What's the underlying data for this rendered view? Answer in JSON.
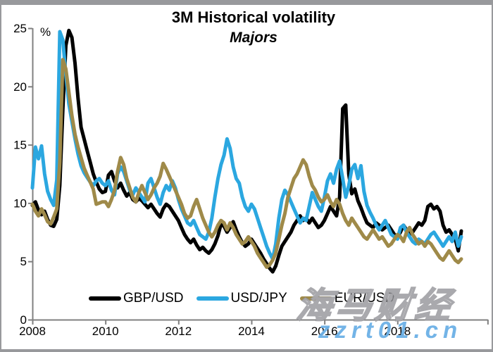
{
  "watermark": {
    "brand_text": "海马财经",
    "site_text": "zzrt01.cn"
  },
  "chart_data": {
    "type": "line",
    "title": "3M Historical volatility",
    "subtitle": "Majors",
    "xlabel": "",
    "ylabel": "%",
    "ylim": [
      0,
      25
    ],
    "yticks": [
      0,
      5,
      10,
      15,
      20,
      25
    ],
    "xticks": [
      2008,
      2010,
      2012,
      2014,
      2016,
      2018
    ],
    "x_start": 2008.0,
    "x_end": 2019.75,
    "x_axis_end": 2020.48,
    "frequency": "monthly",
    "grid": false,
    "legend_position": "bottom",
    "axis_color": "#808080",
    "series": [
      {
        "name": "GBP/USD",
        "color": "#000000",
        "values": [
          9.8,
          10.1,
          9.4,
          9.0,
          9.3,
          8.6,
          8.1,
          8.0,
          8.6,
          11.5,
          18.0,
          23.5,
          24.8,
          24.2,
          22.0,
          19.0,
          16.5,
          15.5,
          14.5,
          13.5,
          12.5,
          11.8,
          11.2,
          10.9,
          11.0,
          12.4,
          12.7,
          11.9,
          11.3,
          11.7,
          11.1,
          10.6,
          10.9,
          10.3,
          10.1,
          10.4,
          10.2,
          9.9,
          9.6,
          9.9,
          9.5,
          9.1,
          8.8,
          9.5,
          9.9,
          9.7,
          9.3,
          8.9,
          8.5,
          7.9,
          7.3,
          6.9,
          6.6,
          6.9,
          6.4,
          6.0,
          6.2,
          5.9,
          5.7,
          6.0,
          6.5,
          7.2,
          8.2,
          8.0,
          7.5,
          7.9,
          8.4,
          7.7,
          7.1,
          6.6,
          6.3,
          6.5,
          6.9,
          6.5,
          6.1,
          5.7,
          5.2,
          4.8,
          4.4,
          4.1,
          4.6,
          5.5,
          6.3,
          6.7,
          7.1,
          7.5,
          8.1,
          8.5,
          8.9,
          8.5,
          8.7,
          8.3,
          8.7,
          8.3,
          7.9,
          8.1,
          8.5,
          9.1,
          9.7,
          9.3,
          8.9,
          10.5,
          18.1,
          18.4,
          12.5,
          10.8,
          11.2,
          10.2,
          9.6,
          8.9,
          8.3,
          8.1,
          7.9,
          8.3,
          8.1,
          7.7,
          7.9,
          8.1,
          7.7,
          7.3,
          7.1,
          7.5,
          8.1,
          7.7,
          7.3,
          7.5,
          7.9,
          8.3,
          8.1,
          8.5,
          9.7,
          9.9,
          9.5,
          9.7,
          9.3,
          8.1,
          7.5,
          7.7,
          7.3,
          6.9,
          5.9,
          7.6
        ]
      },
      {
        "name": "USD/JPY",
        "color": "#2BA7E0",
        "values": [
          11.3,
          14.8,
          13.8,
          14.9,
          12.5,
          11.0,
          10.3,
          9.8,
          12.0,
          24.7,
          24.0,
          21.0,
          18.5,
          17.0,
          15.5,
          14.2,
          13.2,
          12.6,
          12.2,
          11.8,
          11.5,
          11.9,
          12.1,
          11.7,
          11.5,
          11.9,
          11.1,
          10.7,
          12.5,
          13.1,
          12.7,
          11.9,
          11.1,
          10.7,
          11.3,
          10.9,
          10.5,
          10.1,
          11.7,
          12.1,
          11.3,
          10.5,
          9.9,
          10.9,
          11.5,
          11.1,
          11.9,
          11.3,
          10.3,
          9.5,
          8.9,
          8.3,
          8.1,
          8.5,
          7.9,
          7.3,
          7.1,
          6.9,
          7.5,
          8.7,
          10.5,
          12.1,
          13.3,
          14.1,
          15.5,
          14.7,
          13.1,
          12.1,
          11.7,
          10.5,
          9.7,
          9.3,
          9.9,
          9.5,
          8.7,
          7.9,
          7.1,
          6.3,
          5.7,
          5.2,
          6.5,
          8.7,
          10.3,
          11.1,
          10.7,
          10.1,
          9.5,
          8.9,
          8.3,
          8.7,
          8.5,
          9.7,
          10.9,
          10.3,
          9.7,
          9.3,
          10.5,
          11.9,
          12.5,
          11.7,
          12.9,
          13.6,
          12.1,
          10.5,
          11.5,
          12.9,
          13.3,
          12.1,
          13.2,
          11.0,
          9.8,
          9.2,
          8.7,
          8.1,
          7.7,
          8.1,
          8.5,
          7.9,
          7.3,
          7.1,
          6.9,
          7.9,
          8.1,
          7.5,
          7.1,
          6.7,
          6.5,
          6.9,
          6.7,
          6.5,
          6.9,
          7.3,
          7.5,
          7.1,
          6.7,
          6.3,
          6.7,
          7.1,
          6.7,
          7.5,
          6.3,
          7.1
        ]
      },
      {
        "name": "EUR/USD",
        "color": "#9F8A49",
        "values": [
          9.9,
          9.3,
          8.9,
          9.5,
          9.0,
          8.4,
          8.2,
          8.8,
          9.5,
          13.5,
          22.3,
          21.5,
          19.5,
          17.5,
          15.9,
          14.8,
          13.9,
          13.0,
          12.4,
          11.8,
          11.2,
          9.9,
          10.0,
          10.1,
          10.1,
          9.7,
          10.3,
          11.1,
          12.7,
          13.9,
          13.3,
          12.1,
          11.3,
          10.5,
          10.1,
          10.9,
          11.5,
          10.9,
          10.3,
          10.7,
          11.3,
          11.7,
          12.3,
          13.4,
          12.9,
          12.3,
          11.7,
          11.1,
          10.5,
          9.9,
          9.1,
          8.7,
          8.9,
          9.7,
          10.3,
          9.5,
          8.7,
          8.1,
          7.5,
          7.1,
          7.5,
          8.1,
          8.5,
          8.3,
          7.7,
          8.3,
          7.9,
          7.3,
          6.9,
          6.5,
          6.7,
          7.1,
          6.7,
          6.3,
          5.7,
          5.3,
          4.9,
          4.5,
          4.7,
          5.1,
          5.7,
          6.9,
          8.1,
          9.1,
          10.5,
          11.3,
          12.1,
          12.5,
          13.1,
          13.7,
          13.3,
          12.3,
          11.5,
          11.1,
          10.5,
          10.1,
          10.3,
          10.7,
          10.1,
          9.7,
          10.3,
          9.9,
          9.1,
          8.5,
          8.1,
          8.7,
          8.3,
          7.9,
          7.5,
          7.1,
          6.9,
          7.3,
          7.7,
          7.3,
          6.9,
          7.1,
          6.7,
          6.3,
          6.5,
          6.9,
          7.3,
          7.1,
          6.7,
          7.5,
          7.9,
          7.3,
          6.9,
          6.5,
          6.7,
          6.3,
          6.7,
          6.5,
          6.1,
          5.7,
          5.3,
          5.1,
          5.5,
          5.9,
          5.5,
          5.1,
          4.9,
          5.2
        ]
      }
    ]
  }
}
